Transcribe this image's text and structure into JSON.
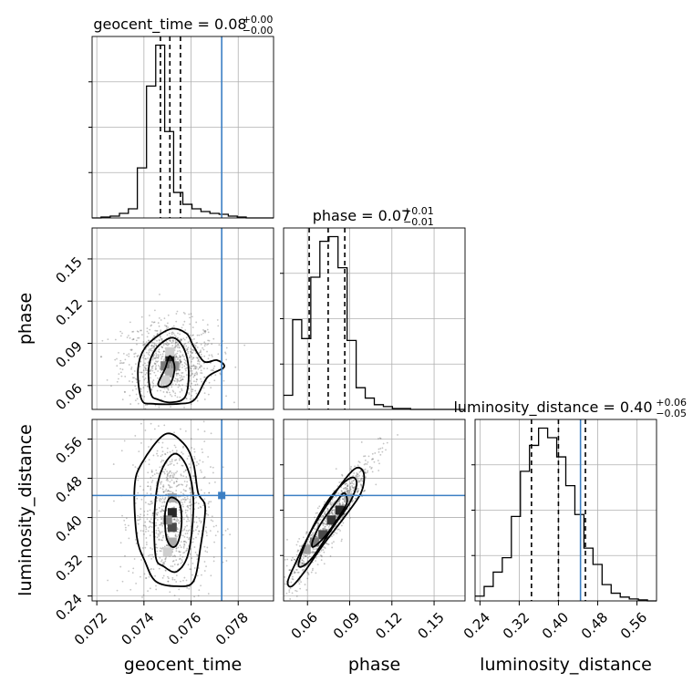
{
  "chart_data": {
    "type": "corner",
    "parameters": [
      "geocent_time",
      "phase",
      "luminosity_distance"
    ],
    "truth": {
      "geocent_time": 0.0773,
      "phase": null,
      "luminosity_distance": 0.445
    },
    "truth_color": "#3b7fc4",
    "titles": [
      {
        "param": "geocent_time",
        "prefix": "geocent_time = ",
        "value": "0.08",
        "plus": "+0.00",
        "minus": "−0.00"
      },
      {
        "param": "phase",
        "prefix": "phase = ",
        "value": "0.07",
        "plus": "+0.01",
        "minus": "−0.01"
      },
      {
        "param": "luminosity_distance",
        "prefix": "luminosity_distance = ",
        "value": "0.40",
        "plus": "+0.06",
        "minus": "−0.05"
      }
    ],
    "axis_labels": {
      "geocent_time": "geocent_time",
      "phase": "phase",
      "luminosity_distance": "luminosity_distance"
    },
    "ticks": {
      "geocent_time": [
        "0.072",
        "0.074",
        "0.076",
        "0.078"
      ],
      "phase": [
        "0.06",
        "0.09",
        "0.12",
        "0.15"
      ],
      "luminosity_distance": [
        "0.24",
        "0.32",
        "0.40",
        "0.48",
        "0.56"
      ]
    },
    "ranges": {
      "geocent_time": [
        0.0718,
        0.0795
      ],
      "phase": [
        0.043,
        0.172
      ],
      "luminosity_distance": [
        0.23,
        0.6
      ]
    },
    "histograms": {
      "geocent_time": {
        "edges": [
          0.0718,
          0.07218,
          0.07257,
          0.07296,
          0.07334,
          0.07372,
          0.07411,
          0.0745,
          0.07488,
          0.07526,
          0.07565,
          0.07604,
          0.07642,
          0.0768,
          0.07719,
          0.07758,
          0.07796,
          0.07834,
          0.07873,
          0.07912,
          0.0795
        ],
        "counts": [
          0,
          1,
          2,
          5,
          10,
          55,
          145,
          190,
          95,
          28,
          15,
          10,
          7,
          5,
          4,
          2,
          1,
          0,
          0,
          0
        ],
        "quantiles": [
          0.0747,
          0.0751,
          0.07555
        ]
      },
      "phase": {
        "edges": [
          0.043,
          0.04945,
          0.0559,
          0.06235,
          0.0688,
          0.07525,
          0.0817,
          0.08815,
          0.0946,
          0.10105,
          0.1075,
          0.11395,
          0.1204,
          0.12685,
          0.1333,
          0.13975,
          0.1462,
          0.15265,
          0.1591,
          0.16555,
          0.172
        ],
        "counts": [
          15,
          95,
          75,
          140,
          178,
          183,
          150,
          73,
          23,
          12,
          5,
          3,
          1,
          1,
          0,
          0,
          0,
          0,
          0,
          0
        ],
        "quantiles": [
          0.0612,
          0.0747,
          0.0865
        ]
      },
      "luminosity_distance": {
        "edges": [
          0.23,
          0.2485,
          0.267,
          0.2855,
          0.304,
          0.3225,
          0.341,
          0.3595,
          0.378,
          0.3965,
          0.415,
          0.4335,
          0.452,
          0.4705,
          0.489,
          0.5075,
          0.526,
          0.5445,
          0.563,
          0.5815,
          0.6
        ],
        "counts": [
          5,
          15,
          30,
          45,
          88,
          135,
          162,
          180,
          170,
          150,
          120,
          90,
          55,
          38,
          17,
          8,
          4,
          2,
          1,
          0
        ],
        "quantiles": [
          0.345,
          0.4,
          0.455
        ]
      }
    },
    "density": [
      {
        "x": "geocent_time",
        "y": "phase",
        "center": [
          0.0751,
          0.077
        ],
        "contours": [
          [
            [
              0.0746,
              0.061
            ],
            [
              0.0749,
              0.072
            ],
            [
              0.0751,
              0.081
            ],
            [
              0.0753,
              0.073
            ],
            [
              0.07515,
              0.062
            ],
            [
              0.07485,
              0.059
            ]
          ],
          [
            [
              0.0743,
              0.054
            ],
            [
              0.0742,
              0.072
            ],
            [
              0.0745,
              0.086
            ],
            [
              0.0752,
              0.094
            ],
            [
              0.0757,
              0.086
            ],
            [
              0.0759,
              0.07
            ],
            [
              0.07575,
              0.052
            ],
            [
              0.07515,
              0.048
            ],
            [
              0.0746,
              0.05
            ]
          ],
          [
            [
              0.0739,
              0.05
            ],
            [
              0.07375,
              0.072
            ],
            [
              0.0741,
              0.088
            ],
            [
              0.0751,
              0.1
            ],
            [
              0.0758,
              0.097
            ],
            [
              0.0761,
              0.088
            ],
            [
              0.07655,
              0.077
            ],
            [
              0.0771,
              0.078
            ],
            [
              0.0774,
              0.073
            ],
            [
              0.0767,
              0.066
            ],
            [
              0.07615,
              0.05
            ],
            [
              0.0755,
              0.047
            ],
            [
              0.0744,
              0.047
            ]
          ]
        ]
      },
      {
        "x": "geocent_time",
        "y": "luminosity_distance",
        "center": [
          0.0752,
          0.4
        ],
        "contours": [
          [
            [
              0.07495,
              0.36
            ],
            [
              0.0749,
              0.41
            ],
            [
              0.0751,
              0.44
            ],
            [
              0.0755,
              0.43
            ],
            [
              0.0756,
              0.39
            ],
            [
              0.07545,
              0.35
            ],
            [
              0.0752,
              0.34
            ]
          ],
          [
            [
              0.0745,
              0.32
            ],
            [
              0.07445,
              0.41
            ],
            [
              0.0747,
              0.49
            ],
            [
              0.0753,
              0.53
            ],
            [
              0.07585,
              0.5
            ],
            [
              0.0761,
              0.43
            ],
            [
              0.0759,
              0.33
            ],
            [
              0.0754,
              0.29
            ],
            [
              0.07485,
              0.3
            ]
          ],
          [
            [
              0.0737,
              0.36
            ],
            [
              0.0736,
              0.46
            ],
            [
              0.0739,
              0.51
            ],
            [
              0.0749,
              0.57
            ],
            [
              0.0757,
              0.55
            ],
            [
              0.0761,
              0.51
            ],
            [
              0.0763,
              0.45
            ],
            [
              0.0766,
              0.42
            ],
            [
              0.0764,
              0.34
            ],
            [
              0.0761,
              0.27
            ],
            [
              0.0754,
              0.26
            ],
            [
              0.0745,
              0.27
            ],
            [
              0.07405,
              0.31
            ]
          ]
        ]
      },
      {
        "x": "phase",
        "y": "luminosity_distance",
        "center": [
          0.075,
          0.39
        ],
        "contours": [
          [
            [
              0.064,
              0.355
            ],
            [
              0.07,
              0.39
            ],
            [
              0.08,
              0.43
            ],
            [
              0.086,
              0.45
            ],
            [
              0.088,
              0.43
            ],
            [
              0.082,
              0.4
            ],
            [
              0.072,
              0.36
            ],
            [
              0.064,
              0.34
            ]
          ],
          [
            [
              0.054,
              0.31
            ],
            [
              0.062,
              0.37
            ],
            [
              0.076,
              0.44
            ],
            [
              0.09,
              0.48
            ],
            [
              0.095,
              0.47
            ],
            [
              0.09,
              0.43
            ],
            [
              0.078,
              0.38
            ],
            [
              0.064,
              0.32
            ],
            [
              0.056,
              0.3
            ]
          ],
          [
            [
              0.046,
              0.27
            ],
            [
              0.052,
              0.31
            ],
            [
              0.064,
              0.38
            ],
            [
              0.082,
              0.46
            ],
            [
              0.094,
              0.5
            ],
            [
              0.1,
              0.49
            ],
            [
              0.098,
              0.45
            ],
            [
              0.086,
              0.4
            ],
            [
              0.07,
              0.34
            ],
            [
              0.058,
              0.29
            ],
            [
              0.049,
              0.26
            ]
          ]
        ]
      }
    ],
    "density_blocks": [
      {
        "x": "geocent_time",
        "y": "phase",
        "blocks": [
          [
            0.0751,
            0.079,
            0.9
          ],
          [
            0.0749,
            0.074,
            0.55
          ],
          [
            0.0753,
            0.074,
            0.45
          ],
          [
            0.0751,
            0.069,
            0.35
          ],
          [
            0.0749,
            0.064,
            0.2
          ],
          [
            0.0751,
            0.084,
            0.2
          ]
        ]
      },
      {
        "x": "geocent_time",
        "y": "luminosity_distance",
        "blocks": [
          [
            0.0752,
            0.41,
            0.9
          ],
          [
            0.0752,
            0.38,
            0.75
          ],
          [
            0.075,
            0.395,
            0.5
          ],
          [
            0.0752,
            0.35,
            0.35
          ],
          [
            0.0752,
            0.44,
            0.35
          ],
          [
            0.075,
            0.33,
            0.2
          ]
        ]
      },
      {
        "x": "phase",
        "y": "luminosity_distance",
        "blocks": [
          [
            0.083,
            0.415,
            0.9
          ],
          [
            0.077,
            0.395,
            0.85
          ],
          [
            0.071,
            0.365,
            0.75
          ],
          [
            0.065,
            0.35,
            0.55
          ],
          [
            0.059,
            0.335,
            0.4
          ],
          [
            0.089,
            0.44,
            0.3
          ]
        ]
      }
    ]
  }
}
